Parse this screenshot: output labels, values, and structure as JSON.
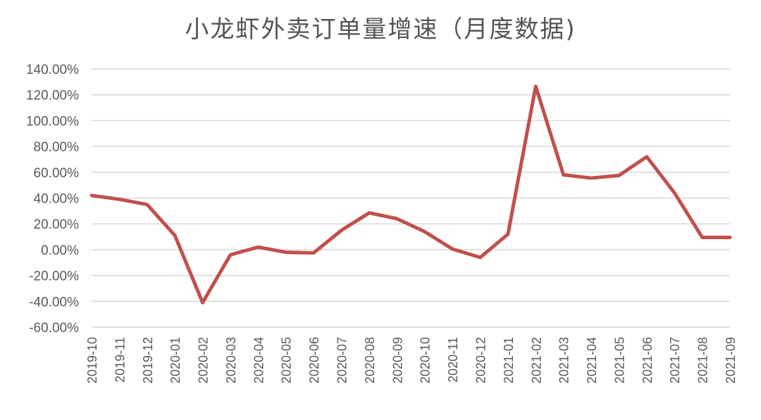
{
  "chart_data": {
    "type": "line",
    "title": "小龙虾外卖订单量增速（月度数据)",
    "xlabel": "",
    "ylabel": "",
    "categories": [
      "2019-10",
      "2019-11",
      "2019-12",
      "2020-01",
      "2020-02",
      "2020-03",
      "2020-04",
      "2020-05",
      "2020-06",
      "2020-07",
      "2020-08",
      "2020-09",
      "2020-10",
      "2020-11",
      "2020-12",
      "2021-01",
      "2021-02",
      "2021-03",
      "2021-04",
      "2021-05",
      "2021-06",
      "2021-07",
      "2021-08",
      "2021-09"
    ],
    "series": [
      {
        "values": [
          42,
          39,
          35,
          11,
          -41,
          -4,
          2,
          -2,
          -2.5,
          15,
          28.5,
          24,
          14,
          0.5,
          -6,
          12,
          126.5,
          58,
          55.5,
          57.5,
          72,
          44,
          9.5,
          9.5
        ],
        "color": "#c0504d"
      }
    ],
    "ylim": [
      -60,
      140
    ],
    "yticks": [
      140,
      120,
      100,
      80,
      60,
      40,
      20,
      0,
      -20,
      -40,
      -60
    ],
    "ytick_labels": [
      "140.00%",
      "120.00%",
      "100.00%",
      "80.00%",
      "60.00%",
      "40.00%",
      "20.00%",
      "0.00%",
      "-20.00%",
      "-40.00%",
      "-60.00%"
    ],
    "grid": true,
    "legend": "none",
    "colors": {
      "line": "#c0504d",
      "grid": "#d9d9d9",
      "text": "#595959"
    }
  }
}
